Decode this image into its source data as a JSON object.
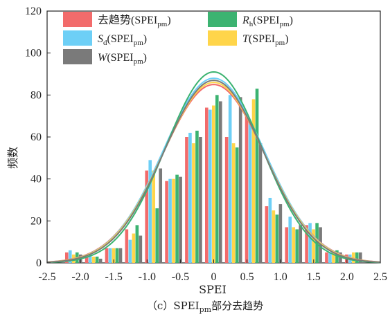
{
  "chart_data": {
    "type": "bar",
    "xlabel": "SPEI",
    "ylabel": "频数",
    "xlim": [
      -2.5,
      2.5
    ],
    "ylim": [
      0,
      120
    ],
    "xticks": [
      "-2.5",
      "-2.0",
      "-1.5",
      "-1.0",
      "-0.5",
      "0",
      "0.5",
      "1.0",
      "1.5",
      "2.0",
      "2.5"
    ],
    "yticks": [
      "0",
      "20",
      "40",
      "60",
      "80",
      "100",
      "120"
    ],
    "caption": {
      "prefix": "（c）SPEI",
      "sub": "pm",
      "suffix": "部分去趋势"
    },
    "grid": false,
    "legend_position": "top",
    "bin_centers": [
      -2.1,
      -1.8,
      -1.5,
      -1.2,
      -0.9,
      -0.6,
      -0.3,
      0.0,
      0.3,
      0.6,
      0.9,
      1.2,
      1.5,
      1.8,
      2.1
    ],
    "series": [
      {
        "name": "去趋势",
        "sub": "",
        "tail": "(SPEI",
        "tail_sub": "pm",
        "close": ")",
        "italic": false,
        "color": "#f26b6b",
        "values": [
          5,
          3,
          7,
          16,
          44,
          39,
          60,
          74,
          60,
          70,
          27,
          17,
          18,
          5,
          4
        ]
      },
      {
        "name": "S",
        "sub": "d",
        "tail": "(SPEI",
        "tail_sub": "pm",
        "close": ")",
        "italic": true,
        "color": "#6dcff6",
        "values": [
          6,
          4,
          7,
          11,
          49,
          40,
          62,
          73,
          80,
          67,
          31,
          22,
          19,
          5,
          4
        ]
      },
      {
        "name": "T",
        "sub": "",
        "tail": "(SPEI",
        "tail_sub": "pm",
        "close": ")",
        "italic": true,
        "color": "#ffd54a",
        "values": [
          4,
          3,
          7,
          14,
          44,
          40,
          57,
          75,
          57,
          78,
          25,
          17,
          16,
          5,
          5
        ]
      },
      {
        "name": "R",
        "sub": "h",
        "tail": "(SPEI",
        "tail_sub": "pm",
        "close": ")",
        "italic": true,
        "color": "#3cb371",
        "values": [
          5,
          3,
          7,
          18,
          26,
          42,
          63,
          80,
          55,
          83,
          23,
          16,
          19,
          6,
          5
        ]
      },
      {
        "name": "W",
        "sub": "",
        "tail": "(SPEI",
        "tail_sub": "pm",
        "close": ")",
        "italic": true,
        "color": "#7a7a7a",
        "values": [
          4,
          2,
          7,
          13,
          45,
          41,
          60,
          77,
          79,
          57,
          28,
          18,
          17,
          5,
          5
        ]
      }
    ],
    "curves": [
      {
        "color": "#f26b6b",
        "peak": 85,
        "sigma": 0.77
      },
      {
        "color": "#6dcff6",
        "peak": 88,
        "sigma": 0.76
      },
      {
        "color": "#ffd54a",
        "peak": 86,
        "sigma": 0.76
      },
      {
        "color": "#3cb371",
        "peak": 91,
        "sigma": 0.72
      },
      {
        "color": "#7a7a7a",
        "peak": 87,
        "sigma": 0.75
      }
    ]
  }
}
